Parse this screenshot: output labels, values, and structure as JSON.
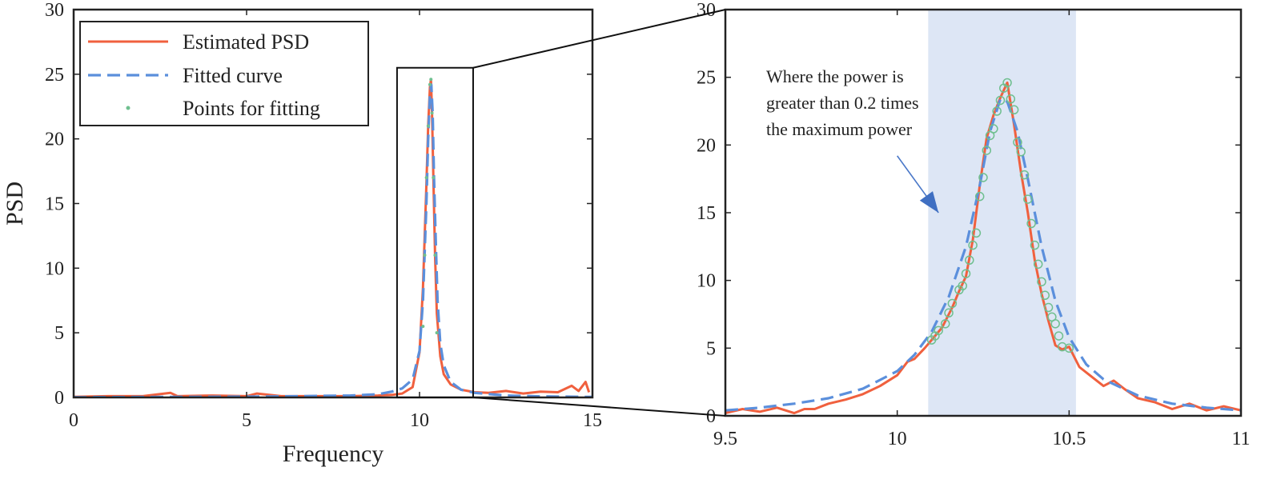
{
  "chart_data": [
    {
      "type": "line",
      "title": "",
      "xlabel": "Frequency",
      "ylabel": "PSD",
      "xlim": [
        0,
        15
      ],
      "ylim": [
        0,
        30
      ],
      "xticks": [
        0,
        5,
        10,
        15
      ],
      "yticks": [
        0,
        5,
        10,
        15,
        20,
        25,
        30
      ],
      "xtick_labels": [
        "0",
        "5",
        "10",
        "15"
      ],
      "ytick_labels": [
        "0",
        "5",
        "10",
        "15",
        "20",
        "25",
        "30"
      ],
      "grid": false,
      "legend_position": "top-left",
      "inset_box": {
        "x": [
          9.35,
          11.55
        ],
        "y": [
          0,
          25.5
        ]
      },
      "series": [
        {
          "name": "Estimated PSD",
          "color": "#f0603e",
          "style": "solid",
          "x": [
            0,
            1,
            2,
            2.8,
            3,
            4,
            5,
            5.3,
            6,
            7,
            8,
            8.8,
            9.2,
            9.5,
            9.8,
            10.0,
            10.1,
            10.2,
            10.25,
            10.3,
            10.33,
            10.36,
            10.4,
            10.45,
            10.5,
            10.6,
            10.7,
            10.9,
            11.2,
            11.6,
            12,
            12.5,
            13,
            13.5,
            14,
            14.4,
            14.6,
            14.8,
            14.9
          ],
          "y": [
            0.05,
            0.1,
            0.1,
            0.35,
            0.1,
            0.15,
            0.1,
            0.3,
            0.1,
            0.1,
            0.1,
            0.15,
            0.2,
            0.3,
            0.8,
            3.5,
            8.5,
            16.5,
            21,
            24,
            24.6,
            22,
            17,
            11,
            6.5,
            3.2,
            1.8,
            1.0,
            0.6,
            0.4,
            0.35,
            0.5,
            0.3,
            0.45,
            0.4,
            0.9,
            0.5,
            1.2,
            0.4
          ]
        },
        {
          "name": "Fitted curve",
          "color": "#5b8fdc",
          "style": "dashed",
          "x": [
            0,
            2,
            4,
            6,
            8,
            8.8,
            9.2,
            9.5,
            9.8,
            10.0,
            10.1,
            10.2,
            10.25,
            10.3,
            10.34,
            10.38,
            10.42,
            10.47,
            10.52,
            10.6,
            10.7,
            10.9,
            11.2,
            11.6,
            12.5,
            13.5,
            15
          ],
          "y": [
            0.02,
            0.03,
            0.05,
            0.08,
            0.15,
            0.25,
            0.45,
            0.7,
            1.4,
            3.6,
            7.5,
            15,
            20,
            23.5,
            24.2,
            22,
            17,
            12,
            7.5,
            4.2,
            2.5,
            1.2,
            0.6,
            0.35,
            0.15,
            0.08,
            0.04
          ]
        },
        {
          "name": "Points for fitting",
          "color": "#6fbf8f",
          "style": "markers",
          "x": [
            10.1,
            10.15,
            10.2,
            10.25,
            10.3,
            10.33,
            10.36,
            10.4,
            10.45,
            10.5
          ],
          "y": [
            5.5,
            11,
            17,
            21,
            24.2,
            24.6,
            22,
            17,
            11,
            5
          ]
        }
      ]
    },
    {
      "type": "line",
      "title": "",
      "xlabel": "",
      "ylabel": "",
      "xlim": [
        9.5,
        11
      ],
      "ylim": [
        0,
        30
      ],
      "xticks": [
        9.5,
        10,
        10.5,
        11
      ],
      "yticks": [
        0,
        5,
        10,
        15,
        20,
        25,
        30
      ],
      "xtick_labels": [
        "9.5",
        "10",
        "10.5",
        "11"
      ],
      "ytick_labels": [
        "0",
        "5",
        "10",
        "15",
        "20",
        "25",
        "30"
      ],
      "grid": false,
      "highlight_region": {
        "x": [
          10.09,
          10.52
        ],
        "color": "#dde6f5"
      },
      "annotation": {
        "lines": [
          "Where the power is",
          "greater than 0.2 times",
          "the maximum power"
        ],
        "arrow_from": [
          10.0,
          19.2
        ],
        "arrow_to": [
          10.12,
          15.0
        ]
      },
      "series": [
        {
          "name": "Estimated PSD",
          "color": "#f0603e",
          "style": "solid",
          "x": [
            9.5,
            9.55,
            9.6,
            9.65,
            9.7,
            9.73,
            9.76,
            9.8,
            9.85,
            9.9,
            9.95,
            10.0,
            10.03,
            10.05,
            10.08,
            10.1,
            10.13,
            10.16,
            10.18,
            10.2,
            10.22,
            10.24,
            10.26,
            10.28,
            10.3,
            10.32,
            10.34,
            10.36,
            10.38,
            10.4,
            10.42,
            10.44,
            10.46,
            10.48,
            10.5,
            10.53,
            10.56,
            10.6,
            10.63,
            10.66,
            10.7,
            10.75,
            10.8,
            10.85,
            10.9,
            10.95,
            11.0
          ],
          "y": [
            0.2,
            0.5,
            0.3,
            0.6,
            0.2,
            0.5,
            0.5,
            0.9,
            1.2,
            1.6,
            2.2,
            3.0,
            4.0,
            4.2,
            5.0,
            5.6,
            6.5,
            8.0,
            9.2,
            10.3,
            13,
            17,
            20.5,
            22.2,
            23.5,
            24.6,
            21.5,
            18,
            15,
            11.5,
            9.0,
            7.0,
            5.2,
            4.9,
            5.1,
            3.6,
            3.0,
            2.2,
            2.6,
            2.0,
            1.3,
            1.0,
            0.5,
            0.9,
            0.4,
            0.7,
            0.4
          ]
        },
        {
          "name": "Fitted curve",
          "color": "#5b8fdc",
          "style": "dashed",
          "x": [
            9.5,
            9.6,
            9.7,
            9.8,
            9.9,
            10.0,
            10.05,
            10.1,
            10.15,
            10.2,
            10.24,
            10.27,
            10.3,
            10.32,
            10.35,
            10.38,
            10.42,
            10.46,
            10.5,
            10.55,
            10.6,
            10.7,
            10.8,
            10.9,
            11.0
          ],
          "y": [
            0.4,
            0.6,
            0.9,
            1.3,
            2.0,
            3.3,
            4.5,
            6.2,
            8.8,
            12.5,
            17,
            21,
            23.4,
            23.2,
            21,
            17.5,
            12.5,
            8.5,
            5.8,
            3.8,
            2.7,
            1.5,
            0.9,
            0.6,
            0.4
          ]
        },
        {
          "name": "Points for fitting",
          "color": "#6fbf8f",
          "style": "circles",
          "x": [
            10.1,
            10.11,
            10.12,
            10.14,
            10.15,
            10.16,
            10.18,
            10.19,
            10.2,
            10.21,
            10.22,
            10.23,
            10.24,
            10.25,
            10.26,
            10.27,
            10.28,
            10.29,
            10.3,
            10.31,
            10.32,
            10.33,
            10.34,
            10.35,
            10.36,
            10.37,
            10.38,
            10.39,
            10.4,
            10.41,
            10.42,
            10.43,
            10.44,
            10.45,
            10.46,
            10.47,
            10.48,
            10.5
          ],
          "y": [
            5.6,
            5.9,
            6.3,
            6.8,
            7.6,
            8.3,
            9.3,
            9.6,
            10.5,
            11.5,
            12.6,
            13.5,
            16.2,
            17.6,
            19.6,
            20.7,
            21.2,
            22.5,
            23.3,
            24.2,
            24.6,
            23.4,
            22.6,
            20.2,
            19.5,
            17.8,
            16.0,
            14.2,
            12.6,
            11.2,
            9.9,
            8.9,
            8.0,
            7.3,
            6.8,
            5.9,
            5.1,
            5.0
          ]
        }
      ]
    }
  ]
}
